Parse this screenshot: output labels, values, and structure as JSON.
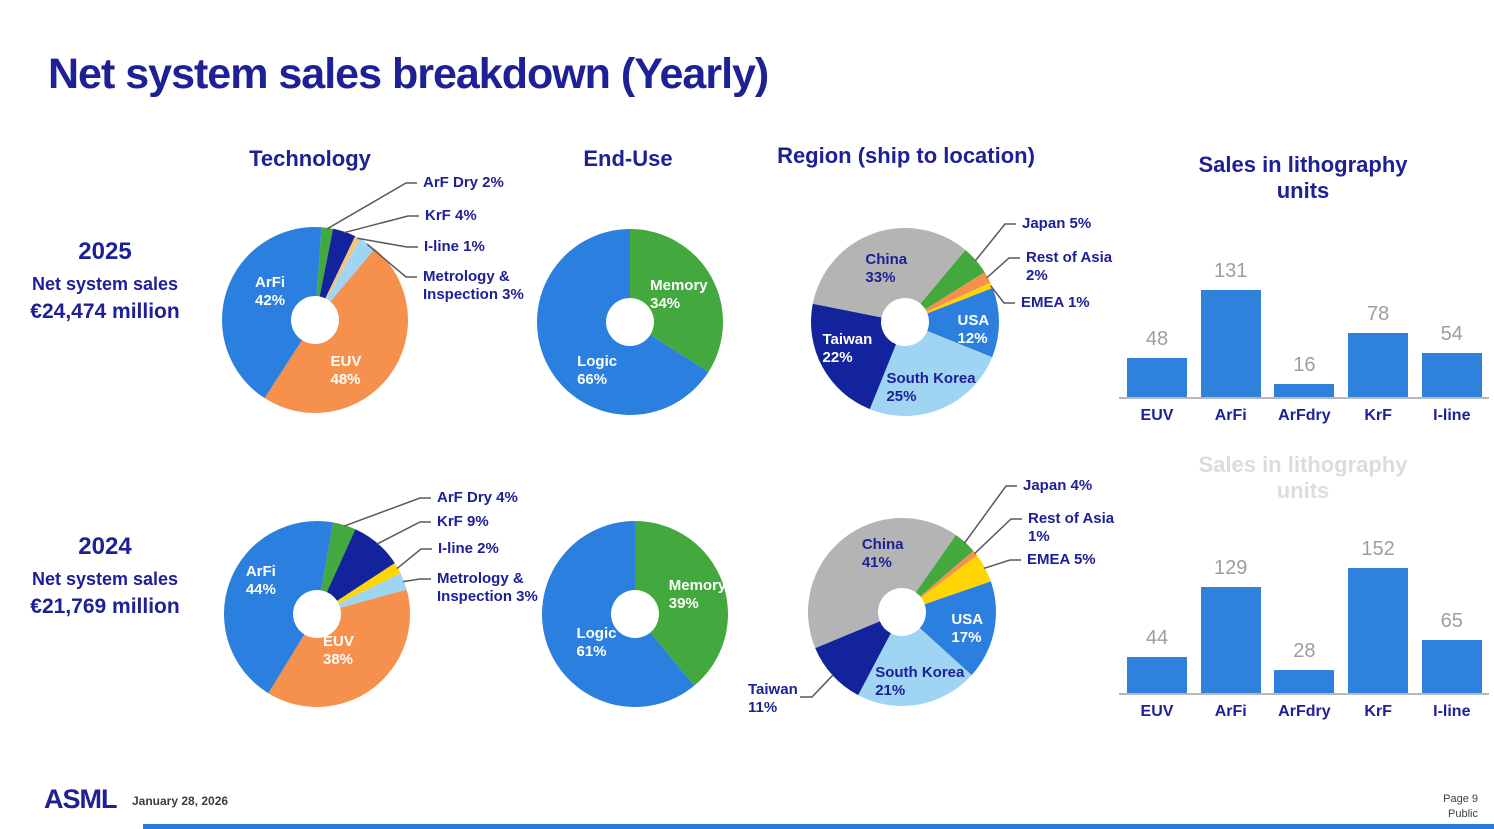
{
  "title": "Net system sales breakdown (Yearly)",
  "columns": {
    "technology": "Technology",
    "end_use": "End-Use",
    "region": "Region (ship to location)",
    "litho": "Sales in lithography units"
  },
  "rows": [
    {
      "year": "2025",
      "sales_label": "Net system sales",
      "sales_value": "€24,474 million"
    },
    {
      "year": "2024",
      "sales_label": "Net system sales",
      "sales_value": "€21,769 million"
    }
  ],
  "palette": {
    "navy_text": "#1e2096",
    "blue": "#2b7fde",
    "orange": "#f6914d",
    "green": "#43a83d",
    "dark_navy": "#12239b",
    "yellow": "#ffd502",
    "tan": "#f2c57f",
    "light_blue": "#9fd5f2",
    "gray": "#b4b4b4",
    "bar_blue": "#2e81dd",
    "value_label_gray": "#9e9e9e",
    "ghost_gray": "#dcdcdc",
    "leader_line": "#595959"
  },
  "chart_data": [
    {
      "id": "technology-2025",
      "type": "donut",
      "title": "Technology",
      "year": "2025",
      "start_angle": 4,
      "slices": [
        {
          "label": "ArF Dry",
          "pct": "2%",
          "value": 2,
          "color": "#43a83d",
          "placement": "callout"
        },
        {
          "label": "KrF",
          "pct": "4%",
          "value": 4,
          "color": "#12239b",
          "placement": "callout"
        },
        {
          "label": "I-line",
          "pct": "1%",
          "value": 1,
          "color": "#f2c57f",
          "placement": "callout"
        },
        {
          "label": "Metrology & Inspection",
          "pct": "3%",
          "value": 3,
          "color": "#9fd5f2",
          "placement": "callout"
        },
        {
          "label": "EUV",
          "pct": "48%",
          "value": 48,
          "color": "#f6914d",
          "placement": "inside",
          "text_color": "#ffffff"
        },
        {
          "label": "ArFi",
          "pct": "42%",
          "value": 42,
          "color": "#2b7fde",
          "placement": "inside",
          "text_color": "#ffffff"
        }
      ]
    },
    {
      "id": "end-use-2025",
      "type": "donut",
      "title": "End-Use",
      "year": "2025",
      "start_angle": 0,
      "slices": [
        {
          "label": "Memory",
          "pct": "34%",
          "value": 34,
          "color": "#43a83d",
          "placement": "inside",
          "text_color": "#ffffff"
        },
        {
          "label": "Logic",
          "pct": "66%",
          "value": 66,
          "color": "#2b7fde",
          "placement": "inside",
          "text_color": "#ffffff"
        }
      ]
    },
    {
      "id": "region-2025",
      "type": "donut",
      "title": "Region (ship to location)",
      "year": "2025",
      "start_angle": 40,
      "slices": [
        {
          "label": "Japan",
          "pct": "5%",
          "value": 5,
          "color": "#43a83d",
          "placement": "callout"
        },
        {
          "label": "Rest of Asia",
          "pct": "2%",
          "value": 2,
          "color": "#f6914d",
          "placement": "callout"
        },
        {
          "label": "EMEA",
          "pct": "1%",
          "value": 1,
          "color": "#ffd502",
          "placement": "callout"
        },
        {
          "label": "USA",
          "pct": "12%",
          "value": 12,
          "color": "#2b7fde",
          "placement": "inside",
          "text_color": "#ffffff"
        },
        {
          "label": "South Korea",
          "pct": "25%",
          "value": 25,
          "color": "#9fd5f2",
          "placement": "inside",
          "text_color": "#1e2096"
        },
        {
          "label": "Taiwan",
          "pct": "22%",
          "value": 22,
          "color": "#12239b",
          "placement": "inside",
          "text_color": "#ffffff"
        },
        {
          "label": "China",
          "pct": "33%",
          "value": 33,
          "color": "#b4b4b4",
          "placement": "inside",
          "text_color": "#1e2096"
        }
      ]
    },
    {
      "id": "litho-2025",
      "type": "bar",
      "title": "Sales in lithography units",
      "year": "2025",
      "categories": [
        "EUV",
        "ArFi",
        "ArFdry",
        "KrF",
        "I-line"
      ],
      "values": [
        48,
        131,
        16,
        78,
        54
      ],
      "bar_color": "#2e81dd"
    },
    {
      "id": "technology-2024",
      "type": "donut",
      "title": "Technology",
      "year": "2024",
      "start_angle": 10,
      "slices": [
        {
          "label": "ArF Dry",
          "pct": "4%",
          "value": 4,
          "color": "#43a83d",
          "placement": "callout"
        },
        {
          "label": "KrF",
          "pct": "9%",
          "value": 9,
          "color": "#12239b",
          "placement": "callout"
        },
        {
          "label": "I-line",
          "pct": "2%",
          "value": 2,
          "color": "#ffd502",
          "placement": "callout"
        },
        {
          "label": "Metrology & Inspection",
          "pct": "3%",
          "value": 3,
          "color": "#9fd5f2",
          "placement": "callout"
        },
        {
          "label": "EUV",
          "pct": "38%",
          "value": 38,
          "color": "#f6914d",
          "placement": "inside",
          "text_color": "#ffffff"
        },
        {
          "label": "ArFi",
          "pct": "44%",
          "value": 44,
          "color": "#2b7fde",
          "placement": "inside",
          "text_color": "#ffffff"
        }
      ]
    },
    {
      "id": "end-use-2024",
      "type": "donut",
      "title": "End-Use",
      "year": "2024",
      "start_angle": 0,
      "slices": [
        {
          "label": "Memory",
          "pct": "39%",
          "value": 39,
          "color": "#43a83d",
          "placement": "inside",
          "text_color": "#ffffff"
        },
        {
          "label": "Logic",
          "pct": "61%",
          "value": 61,
          "color": "#2b7fde",
          "placement": "inside",
          "text_color": "#ffffff"
        }
      ]
    },
    {
      "id": "region-2024",
      "type": "donut",
      "title": "Region (ship to location)",
      "year": "2024",
      "start_angle": 35,
      "slices": [
        {
          "label": "Japan",
          "pct": "4%",
          "value": 4,
          "color": "#43a83d",
          "placement": "callout"
        },
        {
          "label": "Rest of Asia",
          "pct": "1%",
          "value": 1,
          "color": "#f6914d",
          "placement": "callout"
        },
        {
          "label": "EMEA",
          "pct": "5%",
          "value": 5,
          "color": "#ffd502",
          "placement": "callout"
        },
        {
          "label": "USA",
          "pct": "17%",
          "value": 17,
          "color": "#2b7fde",
          "placement": "inside",
          "text_color": "#ffffff"
        },
        {
          "label": "South Korea",
          "pct": "21%",
          "value": 21,
          "color": "#9fd5f2",
          "placement": "inside",
          "text_color": "#1e2096"
        },
        {
          "label": "Taiwan",
          "pct": "11%",
          "value": 11,
          "color": "#12239b",
          "placement": "callout"
        },
        {
          "label": "China",
          "pct": "41%",
          "value": 41,
          "color": "#b4b4b4",
          "placement": "inside",
          "text_color": "#1e2096"
        }
      ]
    },
    {
      "id": "litho-2024",
      "type": "bar",
      "title": "Sales in lithography units",
      "year": "2024",
      "categories": [
        "EUV",
        "ArFi",
        "ArFdry",
        "KrF",
        "I-line"
      ],
      "values": [
        44,
        129,
        28,
        152,
        65
      ],
      "bar_color": "#2e81dd"
    }
  ],
  "footer": {
    "logo": "ASML",
    "date": "January 28, 2026",
    "page": "Page 9",
    "classification": "Public"
  }
}
